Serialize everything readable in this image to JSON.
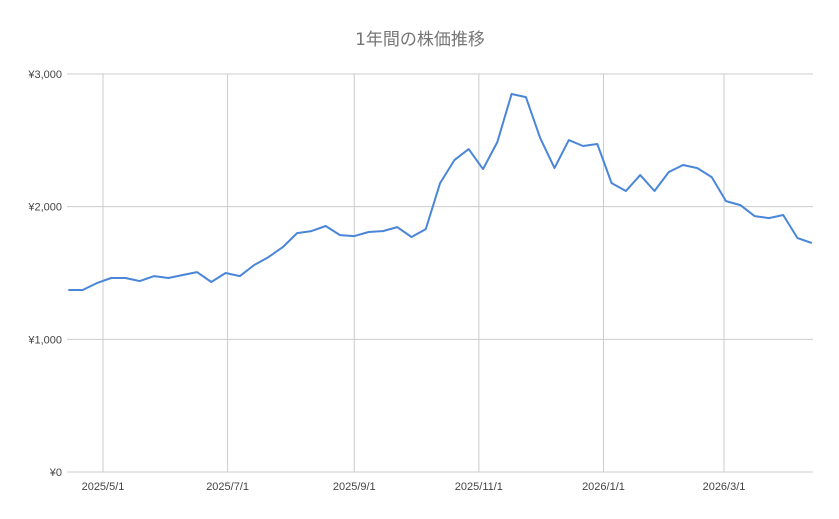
{
  "chart_data": {
    "type": "line",
    "title": "1年間の株価推移",
    "xlabel": "",
    "ylabel": "",
    "ylim": [
      0,
      3000
    ],
    "y_ticks": [
      "¥0",
      "¥1,000",
      "¥2,000",
      "¥3,000"
    ],
    "y_tick_values": [
      0,
      1000,
      2000,
      3000
    ],
    "x_ticks": [
      "2025/5/1",
      "2025/7/1",
      "2025/9/1",
      "2025/11/1",
      "2026/1/1",
      "2026/3/1"
    ],
    "x_tick_dates": [
      "2025-05-01",
      "2025-07-01",
      "2025-09-01",
      "2025-11-01",
      "2026-01-01",
      "2026-03-01"
    ],
    "grid": true,
    "line_color": "#4a86d8",
    "x": [
      "2025-04-14",
      "2025-04-21",
      "2025-04-28",
      "2025-05-05",
      "2025-05-12",
      "2025-05-19",
      "2025-05-26",
      "2025-06-02",
      "2025-06-09",
      "2025-06-16",
      "2025-06-23",
      "2025-06-30",
      "2025-07-07",
      "2025-07-14",
      "2025-07-21",
      "2025-07-28",
      "2025-08-04",
      "2025-08-11",
      "2025-08-18",
      "2025-08-25",
      "2025-09-01",
      "2025-09-08",
      "2025-09-15",
      "2025-09-22",
      "2025-09-29",
      "2025-10-06",
      "2025-10-13",
      "2025-10-20",
      "2025-10-27",
      "2025-11-03",
      "2025-11-10",
      "2025-11-17",
      "2025-11-24",
      "2025-12-01",
      "2025-12-08",
      "2025-12-15",
      "2025-12-22",
      "2025-12-29",
      "2026-01-05",
      "2026-01-12",
      "2026-01-19",
      "2026-01-26",
      "2026-02-02",
      "2026-02-09",
      "2026-02-16",
      "2026-02-23",
      "2026-03-02",
      "2026-03-09",
      "2026-03-16",
      "2026-03-23",
      "2026-03-30",
      "2026-04-06",
      "2026-04-13"
    ],
    "values": [
      1372,
      1372,
      1424,
      1462,
      1462,
      1439,
      1477,
      1462,
      1485,
      1507,
      1432,
      1500,
      1477,
      1560,
      1620,
      1695,
      1801,
      1816,
      1854,
      1786,
      1778,
      1809,
      1816,
      1846,
      1771,
      1831,
      2178,
      2351,
      2434,
      2283,
      2487,
      2849,
      2826,
      2517,
      2291,
      2502,
      2457,
      2472,
      2178,
      2118,
      2238,
      2118,
      2261,
      2314,
      2291,
      2223,
      2042,
      2012,
      1929,
      1914,
      1937,
      1763,
      1726
    ]
  }
}
